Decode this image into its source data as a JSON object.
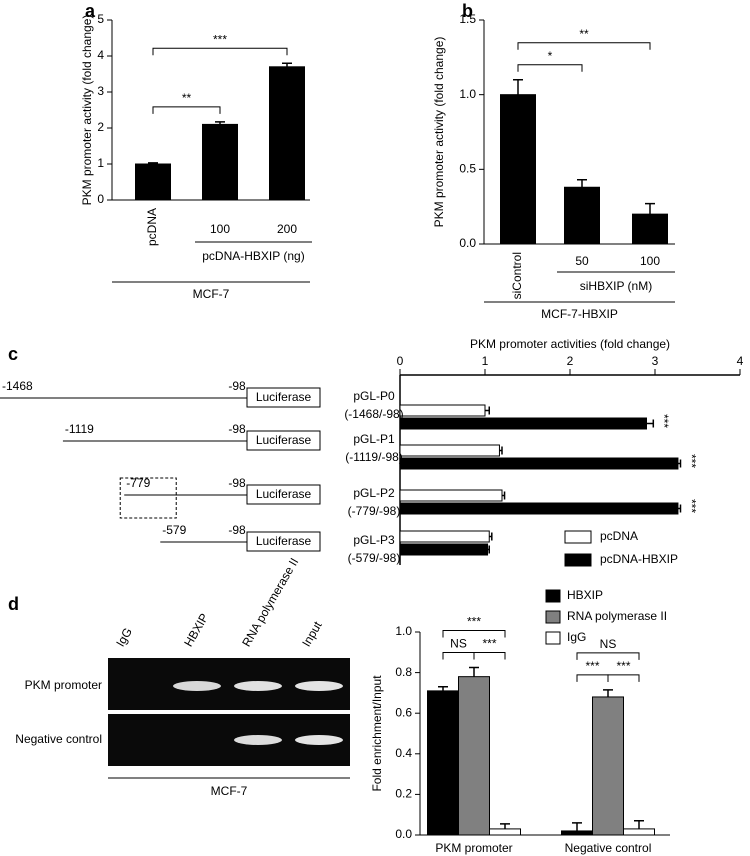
{
  "chart_data": [
    {
      "type": "bar",
      "panel": "a",
      "ylabel": "PKM promoter activity (fold change)",
      "categories": [
        "pcDNA",
        "100",
        "200"
      ],
      "values": [
        1.0,
        2.1,
        3.7
      ],
      "errors": [
        0.03,
        0.07,
        0.1
      ],
      "color": "#000000",
      "ylim": [
        0,
        5
      ],
      "yticks": [
        0,
        1,
        2,
        3,
        4,
        5
      ],
      "group": {
        "label": "pcDNA-HBXIP (ng)",
        "categories": [
          "100",
          "200"
        ]
      },
      "cell_line": "MCF-7",
      "brackets": [
        {
          "between": [
            "pcDNA",
            "100"
          ],
          "label": "**"
        },
        {
          "between": [
            "pcDNA",
            "200"
          ],
          "label": "***"
        }
      ]
    },
    {
      "type": "bar",
      "panel": "b",
      "ylabel": "PKM promoter activity (fold change)",
      "categories": [
        "siControl",
        "50",
        "100"
      ],
      "values": [
        1.0,
        0.38,
        0.2
      ],
      "errors": [
        0.1,
        0.05,
        0.07
      ],
      "color": "#000000",
      "ylim": [
        0,
        1.5
      ],
      "yticks": [
        {
          "value": 0,
          "label": "0.0"
        },
        {
          "value": 0.5,
          "label": "0.5"
        },
        {
          "value": 1,
          "label": "1.0"
        },
        {
          "value": 1.5,
          "label": "1.5"
        }
      ],
      "group": {
        "label": "siHBXIP (nM)",
        "categories": [
          "50",
          "100"
        ]
      },
      "cell_line": "MCF-7-HBXIP",
      "brackets": [
        {
          "between": [
            "siControl",
            "50"
          ],
          "label": "*"
        },
        {
          "between": [
            "siControl",
            "100"
          ],
          "label": "**"
        }
      ]
    },
    {
      "type": "barh",
      "panel": "c",
      "xlabel": "PKM promoter activities (fold change)",
      "categories": [
        "pGL-P0",
        "pGL-P1",
        "pGL-P2",
        "pGL-P3"
      ],
      "ranges": [
        "(-1468/-98)",
        "(-1119/-98)",
        "(-779/-98)",
        "(-579/-98)"
      ],
      "promoter_starts": [
        -1468,
        -1119,
        -779,
        -579
      ],
      "promoter_end": -98,
      "reporter": "Luciferase",
      "series": [
        {
          "name": "pcDNA",
          "color": "#ffffff",
          "values": [
            1.0,
            1.17,
            1.2,
            1.05
          ],
          "errors": [
            0.05,
            0.03,
            0.03,
            0.03
          ]
        },
        {
          "name": "pcDNA-HBXIP",
          "color": "#000000",
          "values": [
            2.9,
            3.27,
            3.27,
            1.03
          ],
          "errors": [
            0.08,
            0.03,
            0.03,
            0.02
          ]
        }
      ],
      "annotations": [
        "***",
        "***",
        "***",
        null
      ],
      "xlim": [
        0,
        4
      ],
      "xticks": [
        0,
        1,
        2,
        3,
        4
      ],
      "legend": "lower right"
    },
    {
      "type": "bar",
      "panel": "d",
      "ylabel": "Fold enrichment/Input",
      "categories": [
        "PKM promoter",
        "Negative control"
      ],
      "series": [
        {
          "name": "HBXIP",
          "color": "#000000",
          "values": [
            0.71,
            0.02
          ],
          "errors": [
            0.02,
            0.04
          ]
        },
        {
          "name": "RNA polymerase II",
          "color": "#808080",
          "values": [
            0.78,
            0.68
          ],
          "errors": [
            0.045,
            0.035
          ]
        },
        {
          "name": "IgG",
          "color": "#ffffff",
          "values": [
            0.03,
            0.03
          ],
          "errors": [
            0.025,
            0.04
          ]
        }
      ],
      "ylim": [
        0,
        1
      ],
      "yticks": [
        {
          "value": 0,
          "label": "0.0"
        },
        {
          "value": 0.2,
          "label": "0.2"
        },
        {
          "value": 0.4,
          "label": "0.4"
        },
        {
          "value": 0.6,
          "label": "0.6"
        },
        {
          "value": 0.8,
          "label": "0.8"
        },
        {
          "value": 1,
          "label": "1.0"
        }
      ],
      "legend": "upper right",
      "brackets": [
        {
          "category": "PKM promoter",
          "between": [
            "RNA polymerase II",
            "IgG"
          ],
          "label": "***"
        },
        {
          "category": "PKM promoter",
          "between": [
            "HBXIP",
            "RNA polymerase II"
          ],
          "label": "NS"
        },
        {
          "category": "PKM promoter",
          "between": [
            "HBXIP",
            "IgG"
          ],
          "label": "***"
        },
        {
          "category": "Negative control",
          "between": [
            "HBXIP",
            "RNA polymerase II"
          ],
          "label": "***"
        },
        {
          "category": "Negative control",
          "between": [
            "RNA polymerase II",
            "IgG"
          ],
          "label": "***"
        },
        {
          "category": "Negative control",
          "between": [
            "HBXIP",
            "IgG"
          ],
          "label": "NS"
        }
      ]
    }
  ],
  "gel": {
    "lanes": [
      "IgG",
      "HBXIP",
      "RNA polymerase II",
      "Input"
    ],
    "rows": [
      "PKM promoter",
      "Negative control"
    ],
    "cell_line": "MCF-7"
  }
}
